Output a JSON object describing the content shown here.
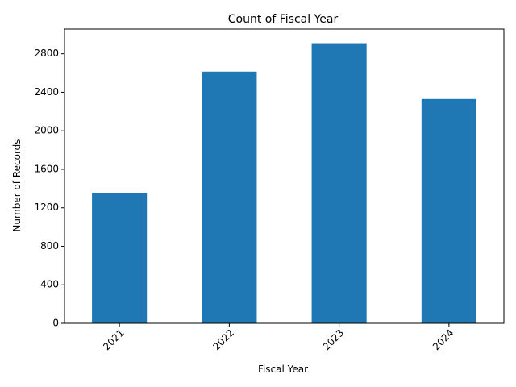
{
  "chart_data": {
    "type": "bar",
    "title": "Count of Fiscal Year",
    "xlabel": "Fiscal Year",
    "ylabel": "Number of Records",
    "categories": [
      "2021",
      "2022",
      "2023",
      "2024"
    ],
    "values": [
      1355,
      2615,
      2910,
      2330
    ],
    "ylim": [
      0,
      3057
    ],
    "yticks": [
      0,
      400,
      800,
      1200,
      1600,
      2000,
      2400,
      2800
    ],
    "bar_color": "#1f77b4",
    "grid": false,
    "legend": "none",
    "xtick_rotation_deg": 45
  }
}
